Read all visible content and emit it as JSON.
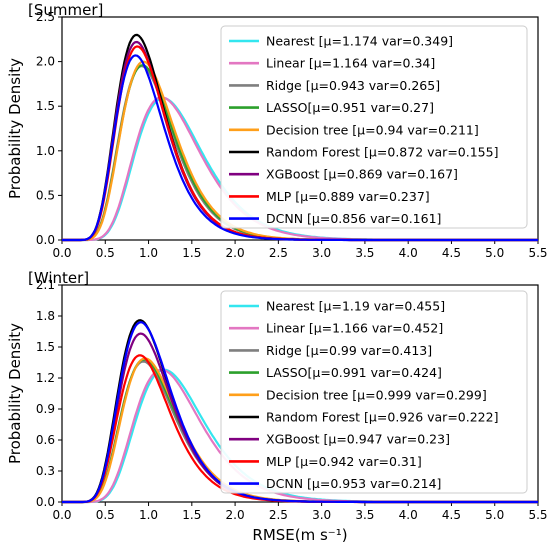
{
  "chart_data": [
    {
      "type": "line",
      "title": "[Summer]",
      "xlabel": "",
      "ylabel": "Probability Density",
      "xlim": [
        0.0,
        5.5
      ],
      "ylim": [
        0.0,
        2.5
      ],
      "xticks": [
        "0.0",
        "0.5",
        "1.0",
        "1.5",
        "2.0",
        "2.5",
        "3.0",
        "3.5",
        "4.0",
        "4.5",
        "5.0",
        "5.5"
      ],
      "yticks": [
        "0.0",
        "0.5",
        "1.0",
        "1.5",
        "2.0",
        "2.5"
      ],
      "legend_position": "top-right",
      "grid": false,
      "series": [
        {
          "name": "Nearest [μ=1.174 var=0.349]",
          "color": "#33e6ef",
          "peak_x": 1.17,
          "peak_y": 1.59
        },
        {
          "name": "Linear [μ=1.164 var=0.34]",
          "color": "#e377c2",
          "peak_x": 1.15,
          "peak_y": 1.6
        },
        {
          "name": "Ridge [μ=0.943 var=0.265]",
          "color": "#7f7f7f",
          "peak_x": 0.92,
          "peak_y": 1.95
        },
        {
          "name": "LASSO[μ=0.951 var=0.27]",
          "color": "#2ca02c",
          "peak_x": 0.93,
          "peak_y": 1.96
        },
        {
          "name": "Decision tree [μ=0.94 var=0.211]",
          "color": "#ff9f1a",
          "peak_x": 0.94,
          "peak_y": 2.0
        },
        {
          "name": "Random Forest [μ=0.872 var=0.155]",
          "color": "#000000",
          "peak_x": 0.86,
          "peak_y": 2.3
        },
        {
          "name": "XGBoost [μ=0.869 var=0.167]",
          "color": "#800080",
          "peak_x": 0.86,
          "peak_y": 2.22
        },
        {
          "name": "MLP [μ=0.889 var=0.237]",
          "color": "#ff0000",
          "peak_x": 0.87,
          "peak_y": 2.17
        },
        {
          "name": "DCNN [μ=0.856 var=0.161]",
          "color": "#0000ff",
          "peak_x": 0.85,
          "peak_y": 2.07
        }
      ]
    },
    {
      "type": "line",
      "title": "[Winter]",
      "xlabel": "RMSE(m s⁻¹)",
      "ylabel": "Probability Density",
      "xlim": [
        0.0,
        5.5
      ],
      "ylim": [
        0.0,
        2.1
      ],
      "xticks": [
        "0.0",
        "0.5",
        "1.0",
        "1.5",
        "2.0",
        "2.5",
        "3.0",
        "3.5",
        "4.0",
        "4.5",
        "5.0",
        "5.5"
      ],
      "yticks": [
        "0.0",
        "0.3",
        "0.6",
        "0.9",
        "1.2",
        "1.5",
        "1.8",
        "2.1"
      ],
      "legend_position": "top-right",
      "grid": false,
      "series": [
        {
          "name": "Nearest [μ=1.19 var=0.455]",
          "color": "#33e6ef",
          "peak_x": 1.18,
          "peak_y": 1.28
        },
        {
          "name": "Linear [μ=1.166 var=0.452]",
          "color": "#e377c2",
          "peak_x": 1.15,
          "peak_y": 1.28
        },
        {
          "name": "Ridge [μ=0.99 var=0.413]",
          "color": "#7f7f7f",
          "peak_x": 0.94,
          "peak_y": 1.36
        },
        {
          "name": "LASSO[μ=0.991 var=0.424]",
          "color": "#2ca02c",
          "peak_x": 0.95,
          "peak_y": 1.38
        },
        {
          "name": "Decision tree [μ=0.999 var=0.299]",
          "color": "#ff9f1a",
          "peak_x": 0.96,
          "peak_y": 1.39
        },
        {
          "name": "Random Forest [μ=0.926 var=0.222]",
          "color": "#000000",
          "peak_x": 0.9,
          "peak_y": 1.76
        },
        {
          "name": "XGBoost [μ=0.947 var=0.23]",
          "color": "#800080",
          "peak_x": 0.91,
          "peak_y": 1.63
        },
        {
          "name": "MLP [μ=0.942 var=0.31]",
          "color": "#ff0000",
          "peak_x": 0.9,
          "peak_y": 1.42
        },
        {
          "name": "DCNN [μ=0.953 var=0.214]",
          "color": "#0000ff",
          "peak_x": 0.91,
          "peak_y": 1.74
        }
      ]
    }
  ]
}
